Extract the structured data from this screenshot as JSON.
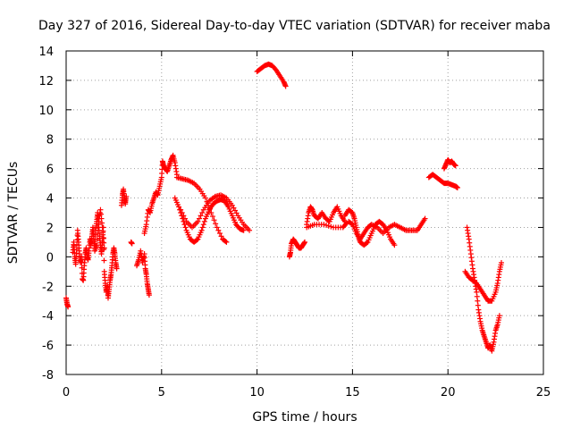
{
  "chart_data": {
    "type": "scatter",
    "title": "Day 327 of 2016, Sidereal Day-to-day VTEC variation (SDTVAR) for receiver maba",
    "xlabel": "GPS time / hours",
    "ylabel": "SDTVAR / TECUs",
    "xlim": [
      0,
      25
    ],
    "ylim": [
      -8,
      14
    ],
    "xticks": [
      0,
      5,
      10,
      15,
      20,
      25
    ],
    "yticks": [
      -8,
      -6,
      -4,
      -2,
      0,
      2,
      4,
      6,
      8,
      10,
      12,
      14
    ],
    "grid": true,
    "marker": "+",
    "color": "#ff0000",
    "series": [
      {
        "name": "SDTVAR",
        "segments": [
          [
            [
              0.0,
              -2.8
            ],
            [
              0.05,
              -3.2
            ],
            [
              0.1,
              -3.4
            ]
          ],
          [
            [
              0.35,
              0.3
            ],
            [
              0.4,
              1.0
            ],
            [
              0.45,
              0.0
            ],
            [
              0.5,
              -0.5
            ],
            [
              0.55,
              0.5
            ],
            [
              0.6,
              1.8
            ],
            [
              0.65,
              1.0
            ],
            [
              0.7,
              0.2
            ],
            [
              0.75,
              -0.4
            ],
            [
              0.8,
              0.0
            ],
            [
              0.85,
              -1.5
            ],
            [
              0.9,
              -1.6
            ],
            [
              0.95,
              -0.6
            ],
            [
              1.0,
              0.2
            ],
            [
              1.05,
              0.6
            ],
            [
              1.1,
              0.0
            ],
            [
              1.15,
              -0.2
            ],
            [
              1.2,
              0.4
            ],
            [
              1.25,
              1.2
            ],
            [
              1.3,
              0.8
            ],
            [
              1.35,
              1.4
            ],
            [
              1.4,
              2.0
            ],
            [
              1.45,
              1.2
            ],
            [
              1.5,
              0.6
            ],
            [
              1.55,
              1.8
            ],
            [
              1.6,
              2.4
            ],
            [
              1.65,
              3.0
            ],
            [
              1.7,
              2.2
            ],
            [
              1.75,
              1.4
            ],
            [
              1.8,
              0.8
            ],
            [
              1.85,
              0.2
            ],
            [
              1.9,
              1.0
            ],
            [
              1.95,
              2.0
            ],
            [
              2.0,
              -1.0
            ],
            [
              2.05,
              -1.8
            ],
            [
              2.1,
              -2.4
            ],
            [
              2.15,
              -2.0
            ],
            [
              2.2,
              -2.8
            ],
            [
              2.25,
              -2.2
            ],
            [
              2.3,
              -1.6
            ],
            [
              2.35,
              -1.2
            ],
            [
              2.4,
              -0.6
            ],
            [
              2.45,
              0.2
            ],
            [
              2.5,
              0.6
            ],
            [
              2.55,
              0.2
            ],
            [
              2.6,
              -0.4
            ],
            [
              2.65,
              -0.8
            ]
          ],
          [
            [
              1.5,
              0.4
            ],
            [
              1.6,
              0.8
            ],
            [
              1.7,
              2.4
            ],
            [
              1.8,
              3.2
            ],
            [
              1.9,
              2.0
            ],
            [
              2.0,
              0.6
            ]
          ],
          [
            [
              2.9,
              3.5
            ],
            [
              2.95,
              4.2
            ],
            [
              3.0,
              4.6
            ],
            [
              3.05,
              4.0
            ],
            [
              3.1,
              3.6
            ],
            [
              3.15,
              4.1
            ]
          ],
          [
            [
              3.4,
              1.0
            ],
            [
              3.45,
              0.9
            ]
          ],
          [
            [
              3.7,
              -0.6
            ],
            [
              3.8,
              -0.2
            ],
            [
              3.9,
              0.4
            ],
            [
              4.0,
              -0.4
            ],
            [
              4.1,
              0.2
            ],
            [
              4.15,
              -0.8
            ],
            [
              4.2,
              -1.2
            ],
            [
              4.25,
              -1.8
            ],
            [
              4.3,
              -2.2
            ],
            [
              4.35,
              -2.6
            ]
          ],
          [
            [
              4.1,
              1.6
            ],
            [
              4.2,
              2.2
            ],
            [
              4.3,
              3.2
            ],
            [
              4.4,
              3.0
            ],
            [
              4.5,
              3.6
            ],
            [
              4.6,
              4.0
            ],
            [
              4.7,
              4.4
            ],
            [
              4.8,
              4.2
            ],
            [
              4.9,
              4.8
            ],
            [
              5.0,
              5.4
            ],
            [
              5.05,
              6.5
            ],
            [
              5.1,
              6.2
            ],
            [
              5.2,
              6.0
            ],
            [
              5.3,
              5.8
            ],
            [
              5.4,
              6.2
            ],
            [
              5.5,
              6.6
            ],
            [
              5.6,
              6.9
            ],
            [
              5.7,
              6.4
            ],
            [
              5.8,
              5.6
            ]
          ],
          [
            [
              5.8,
              5.4
            ],
            [
              6.1,
              5.3
            ],
            [
              6.4,
              5.2
            ],
            [
              6.7,
              5.0
            ],
            [
              7.0,
              4.6
            ],
            [
              7.3,
              4.0
            ],
            [
              7.6,
              3.0
            ],
            [
              7.9,
              2.0
            ],
            [
              8.2,
              1.2
            ],
            [
              8.4,
              1.0
            ]
          ],
          [
            [
              5.7,
              4.0
            ],
            [
              5.9,
              3.4
            ],
            [
              6.1,
              2.6
            ],
            [
              6.3,
              1.8
            ],
            [
              6.5,
              1.2
            ],
            [
              6.7,
              1.0
            ],
            [
              6.9,
              1.2
            ],
            [
              7.1,
              1.8
            ],
            [
              7.3,
              2.6
            ],
            [
              7.5,
              3.2
            ],
            [
              7.7,
              3.6
            ],
            [
              7.9,
              3.8
            ],
            [
              8.1,
              3.9
            ],
            [
              8.3,
              3.8
            ],
            [
              8.5,
              3.4
            ],
            [
              8.7,
              2.8
            ],
            [
              8.9,
              2.2
            ],
            [
              9.1,
              1.9
            ],
            [
              9.3,
              1.8
            ]
          ],
          [
            [
              6.0,
              3.2
            ],
            [
              6.3,
              2.4
            ],
            [
              6.6,
              2.0
            ],
            [
              6.9,
              2.4
            ],
            [
              7.2,
              3.2
            ],
            [
              7.5,
              3.8
            ],
            [
              7.8,
              4.1
            ],
            [
              8.1,
              4.2
            ],
            [
              8.4,
              4.0
            ],
            [
              8.7,
              3.5
            ],
            [
              9.0,
              2.8
            ],
            [
              9.3,
              2.2
            ],
            [
              9.6,
              1.8
            ]
          ],
          [
            [
              10.0,
              12.6
            ],
            [
              10.2,
              12.8
            ],
            [
              10.4,
              13.0
            ],
            [
              10.6,
              13.1
            ],
            [
              10.8,
              13.0
            ],
            [
              11.0,
              12.7
            ],
            [
              11.2,
              12.3
            ],
            [
              11.4,
              11.9
            ],
            [
              11.5,
              11.6
            ]
          ],
          [
            [
              11.7,
              0.0
            ],
            [
              11.75,
              0.3
            ],
            [
              11.8,
              0.9
            ],
            [
              11.9,
              1.2
            ],
            [
              12.0,
              1.0
            ],
            [
              12.1,
              0.8
            ],
            [
              12.2,
              0.6
            ],
            [
              12.3,
              0.6
            ],
            [
              12.4,
              0.8
            ],
            [
              12.5,
              1.0
            ]
          ],
          [
            [
              12.6,
              2.2
            ],
            [
              12.7,
              3.0
            ],
            [
              12.8,
              3.4
            ],
            [
              12.9,
              3.2
            ],
            [
              13.0,
              2.8
            ],
            [
              13.2,
              2.6
            ],
            [
              13.4,
              3.0
            ],
            [
              13.6,
              2.6
            ],
            [
              13.8,
              2.4
            ],
            [
              14.0,
              3.0
            ],
            [
              14.2,
              3.4
            ],
            [
              14.4,
              2.8
            ],
            [
              14.6,
              2.4
            ]
          ],
          [
            [
              12.6,
              2.0
            ],
            [
              13.0,
              2.2
            ],
            [
              13.5,
              2.2
            ],
            [
              14.0,
              2.0
            ],
            [
              14.5,
              2.0
            ],
            [
              14.7,
              2.3
            ]
          ],
          [
            [
              14.6,
              2.8
            ],
            [
              14.8,
              3.2
            ],
            [
              15.0,
              3.0
            ],
            [
              15.1,
              2.6
            ],
            [
              15.2,
              2.0
            ],
            [
              15.3,
              1.4
            ],
            [
              15.4,
              1.0
            ],
            [
              15.6,
              0.8
            ],
            [
              15.8,
              1.0
            ],
            [
              16.0,
              1.6
            ],
            [
              16.2,
              2.2
            ],
            [
              16.4,
              2.4
            ],
            [
              16.6,
              2.2
            ],
            [
              16.8,
              1.8
            ],
            [
              17.0,
              1.2
            ],
            [
              17.2,
              0.8
            ]
          ],
          [
            [
              14.8,
              2.4
            ],
            [
              15.0,
              2.2
            ],
            [
              15.2,
              1.6
            ],
            [
              15.4,
              1.2
            ],
            [
              15.6,
              1.6
            ],
            [
              15.8,
              2.0
            ],
            [
              16.0,
              2.2
            ],
            [
              16.3,
              2.0
            ],
            [
              16.6,
              1.6
            ],
            [
              16.9,
              2.0
            ],
            [
              17.2,
              2.2
            ],
            [
              17.5,
              2.0
            ],
            [
              17.8,
              1.8
            ],
            [
              18.1,
              1.8
            ],
            [
              18.4,
              1.8
            ],
            [
              18.6,
              2.2
            ],
            [
              18.8,
              2.6
            ]
          ],
          [
            [
              19.0,
              5.4
            ],
            [
              19.2,
              5.6
            ],
            [
              19.4,
              5.4
            ],
            [
              19.6,
              5.2
            ],
            [
              19.8,
              5.0
            ],
            [
              20.0,
              5.0
            ],
            [
              20.2,
              4.9
            ],
            [
              20.4,
              4.8
            ],
            [
              20.5,
              4.7
            ]
          ],
          [
            [
              19.8,
              6.0
            ],
            [
              19.9,
              6.3
            ],
            [
              20.0,
              6.6
            ],
            [
              20.1,
              6.4
            ],
            [
              20.2,
              6.5
            ],
            [
              20.3,
              6.3
            ],
            [
              20.4,
              6.2
            ]
          ],
          [
            [
              21.0,
              2.0
            ],
            [
              21.1,
              1.2
            ],
            [
              21.2,
              0.2
            ],
            [
              21.3,
              -0.8
            ],
            [
              21.4,
              -1.6
            ],
            [
              21.5,
              -2.4
            ],
            [
              21.6,
              -3.6
            ],
            [
              21.7,
              -4.4
            ],
            [
              21.8,
              -5.0
            ],
            [
              21.9,
              -5.4
            ],
            [
              22.0,
              -5.8
            ],
            [
              22.1,
              -6.2
            ],
            [
              22.2,
              -6.0
            ],
            [
              22.3,
              -6.4
            ],
            [
              22.4,
              -5.8
            ],
            [
              22.5,
              -5.0
            ],
            [
              22.6,
              -4.6
            ],
            [
              22.7,
              -4.0
            ]
          ],
          [
            [
              20.9,
              -1.0
            ],
            [
              21.1,
              -1.4
            ],
            [
              21.3,
              -1.6
            ],
            [
              21.5,
              -1.8
            ],
            [
              21.7,
              -2.2
            ],
            [
              21.9,
              -2.6
            ],
            [
              22.1,
              -3.0
            ],
            [
              22.3,
              -3.0
            ],
            [
              22.5,
              -2.4
            ],
            [
              22.6,
              -1.8
            ],
            [
              22.7,
              -1.0
            ],
            [
              22.8,
              -0.4
            ]
          ]
        ]
      }
    ]
  }
}
